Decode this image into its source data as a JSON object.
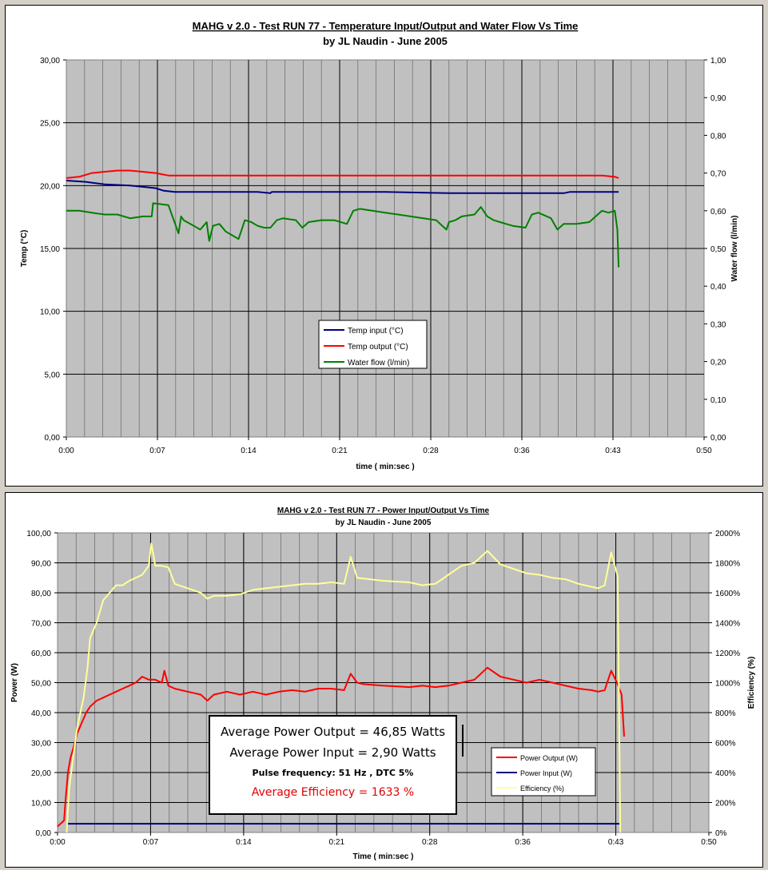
{
  "chart_data": [
    {
      "type": "line",
      "title": "MAHG v 2.0 - Test RUN 77 - Temperature Input/Output and Water Flow Vs Time",
      "subtitle": "by JL Naudin - June 2005",
      "xlabel": "time  ( min:sec )",
      "ylabel": "Temp (°C)",
      "y2label": "Water flow   (l/min)",
      "xlim": [
        0,
        50
      ],
      "ylim": [
        0,
        30
      ],
      "y2lim": [
        0,
        1
      ],
      "x_ticks": [
        "0:00",
        "0:07",
        "0:14",
        "0:21",
        "0:28",
        "0:36",
        "0:43",
        "0:50"
      ],
      "y_ticks": [
        "0,00",
        "5,00",
        "10,00",
        "15,00",
        "20,00",
        "25,00",
        "30,00"
      ],
      "y2_ticks": [
        "0,00",
        "0,10",
        "0,20",
        "0,30",
        "0,40",
        "0,50",
        "0,60",
        "0,70",
        "0,80",
        "0,90",
        "1,00"
      ],
      "grid": true,
      "legend_position": "center-bottom",
      "series": [
        {
          "name": "Temp input (°C)",
          "axis": "left",
          "color": "#000080",
          "x": [
            0,
            1.5,
            3,
            5,
            6,
            7,
            7.6,
            8.5,
            10,
            15,
            16,
            16.1,
            20,
            25,
            30,
            34,
            36,
            39,
            39.5,
            42,
            43.3
          ],
          "y": [
            20.4,
            20.3,
            20.1,
            20.0,
            19.9,
            19.8,
            19.6,
            19.5,
            19.5,
            19.5,
            19.4,
            19.5,
            19.5,
            19.5,
            19.4,
            19.4,
            19.4,
            19.4,
            19.5,
            19.5,
            19.5
          ]
        },
        {
          "name": "Temp output (°C)",
          "axis": "left",
          "color": "#ff0000",
          "x": [
            0,
            1,
            2,
            3,
            4,
            5,
            6,
            7,
            8,
            10,
            15,
            20,
            25,
            30,
            35,
            40,
            42,
            43,
            43.3
          ],
          "y": [
            20.6,
            20.7,
            21.0,
            21.1,
            21.2,
            21.2,
            21.1,
            21.0,
            20.8,
            20.8,
            20.8,
            20.8,
            20.8,
            20.8,
            20.8,
            20.8,
            20.8,
            20.7,
            20.6
          ]
        },
        {
          "name": "Water flow (l/min)",
          "axis": "right",
          "color": "#008000",
          "x": [
            0,
            1,
            2,
            3,
            4,
            5,
            6,
            6.7,
            6.8,
            8,
            8.8,
            9,
            9.2,
            10,
            10.5,
            11,
            11.2,
            11.5,
            12,
            12.5,
            13,
            13.5,
            14,
            14.5,
            15,
            15.5,
            16,
            16.5,
            17,
            18,
            18.5,
            19,
            20,
            21,
            22,
            22.5,
            23,
            24,
            25,
            26,
            27,
            28,
            29,
            29.8,
            30,
            30.5,
            31,
            32,
            32.5,
            33,
            33.5,
            34,
            35,
            36,
            36.5,
            37,
            38,
            38.5,
            39,
            40,
            41,
            42,
            42.5,
            43,
            43.2,
            43.3
          ],
          "y": [
            0.6,
            0.6,
            0.595,
            0.59,
            0.59,
            0.58,
            0.585,
            0.585,
            0.62,
            0.615,
            0.54,
            0.585,
            0.575,
            0.56,
            0.55,
            0.57,
            0.52,
            0.56,
            0.565,
            0.545,
            0.535,
            0.525,
            0.575,
            0.57,
            0.56,
            0.555,
            0.555,
            0.575,
            0.58,
            0.575,
            0.555,
            0.57,
            0.575,
            0.575,
            0.565,
            0.6,
            0.605,
            0.6,
            0.595,
            0.59,
            0.585,
            0.58,
            0.575,
            0.55,
            0.57,
            0.575,
            0.585,
            0.59,
            0.61,
            0.585,
            0.575,
            0.57,
            0.56,
            0.555,
            0.59,
            0.595,
            0.58,
            0.55,
            0.565,
            0.565,
            0.57,
            0.6,
            0.595,
            0.6,
            0.55,
            0.45
          ]
        }
      ]
    },
    {
      "type": "line",
      "title": "MAHG v 2.0 - Test RUN 77 - Power Input/Output Vs Time",
      "subtitle": "by JL Naudin - June 2005",
      "xlabel": "Time  ( min:sec )",
      "ylabel": "Power (W)",
      "y2label": "Efficiency (%)",
      "xlim": [
        0,
        50
      ],
      "ylim": [
        0,
        100
      ],
      "y2lim": [
        0,
        2000
      ],
      "x_ticks": [
        "0:00",
        "0:07",
        "0:14",
        "0:21",
        "0:28",
        "0:36",
        "0:43",
        "0:50"
      ],
      "y_ticks": [
        "0,00",
        "10,00",
        "20,00",
        "30,00",
        "40,00",
        "50,00",
        "60,00",
        "70,00",
        "80,00",
        "90,00",
        "100,00"
      ],
      "y2_ticks": [
        "0%",
        "200%",
        "400%",
        "600%",
        "800%",
        "1000%",
        "1200%",
        "1400%",
        "1600%",
        "1800%",
        "2000%"
      ],
      "grid": true,
      "legend_position": "bottom-right",
      "series": [
        {
          "name": "Power Output (W)",
          "axis": "left",
          "color": "#ff0000",
          "x": [
            0,
            0.5,
            0.6,
            0.8,
            1,
            1.2,
            1.5,
            2,
            2.2,
            2.5,
            3,
            3.5,
            4,
            4.5,
            5,
            5.5,
            6,
            6.5,
            7,
            7.5,
            8,
            8.2,
            8.5,
            9,
            10,
            11,
            11.5,
            12,
            13,
            14,
            15,
            16,
            17,
            18,
            19,
            20,
            21,
            22,
            22.5,
            23,
            23.5,
            25,
            27,
            28,
            29,
            30,
            31,
            32,
            33,
            34,
            36,
            37,
            38,
            39,
            40,
            41,
            41.5,
            42,
            42.5,
            43,
            43.3,
            43.5
          ],
          "y": [
            2,
            4,
            10,
            20,
            25,
            28,
            33,
            38,
            40,
            42,
            44,
            45,
            46,
            47,
            48,
            49,
            50,
            52,
            51,
            51,
            50,
            54,
            49,
            48,
            47,
            46,
            44,
            46,
            47,
            46,
            47,
            46,
            47,
            47.5,
            47,
            48,
            48,
            47.5,
            53,
            50,
            49.5,
            49,
            48.5,
            49,
            48.5,
            49,
            50,
            51,
            55,
            52,
            50,
            51,
            50,
            49,
            48,
            47.5,
            47,
            47.5,
            54,
            49.5,
            46,
            32
          ]
        },
        {
          "name": "Power Input (W)",
          "axis": "left",
          "color": "#000080",
          "x": [
            0.7,
            43.2
          ],
          "y": [
            2.9,
            2.9
          ]
        },
        {
          "name": "Efficiency (%)",
          "axis": "right",
          "color": "#ffff99",
          "x": [
            0.7,
            0.9,
            1.2,
            1.5,
            2,
            2.3,
            2.5,
            3,
            3.5,
            4,
            4.5,
            5,
            5.5,
            6,
            6.5,
            7,
            7.2,
            7.5,
            8,
            8.5,
            9,
            10,
            11,
            11.5,
            12,
            13,
            14,
            15,
            16,
            17,
            18,
            19,
            20,
            21,
            22,
            22.5,
            23,
            24,
            25,
            27,
            28,
            29,
            30,
            31,
            32,
            33,
            34,
            35,
            36,
            37,
            38,
            39,
            40,
            41,
            41.5,
            42,
            42.5,
            43,
            43.2
          ],
          "y": [
            0,
            300,
            500,
            700,
            900,
            1100,
            1300,
            1400,
            1550,
            1600,
            1650,
            1650,
            1680,
            1700,
            1720,
            1780,
            1930,
            1780,
            1780,
            1770,
            1660,
            1630,
            1600,
            1560,
            1580,
            1580,
            1590,
            1620,
            1630,
            1640,
            1650,
            1660,
            1660,
            1670,
            1660,
            1840,
            1700,
            1690,
            1680,
            1670,
            1650,
            1660,
            1720,
            1780,
            1800,
            1880,
            1790,
            1760,
            1730,
            1720,
            1700,
            1690,
            1660,
            1640,
            1630,
            1650,
            1870,
            1710,
            0
          ]
        }
      ]
    }
  ],
  "stats_box": {
    "line1": "Average Power Output = 46,85 Watts",
    "line2": "Average Power Input = 2,90 Watts",
    "line3": "Pulse frequency:  51 Hz  ,  DTC 5%",
    "line4": "Average Efficiency =  1633 %"
  },
  "colors": {
    "plot_bg": "#c0c0c0",
    "temp_input": "#000080",
    "temp_output": "#ff0000",
    "water_flow": "#008000",
    "power_output": "#ff0000",
    "power_input": "#000080",
    "efficiency": "#ffff99"
  }
}
